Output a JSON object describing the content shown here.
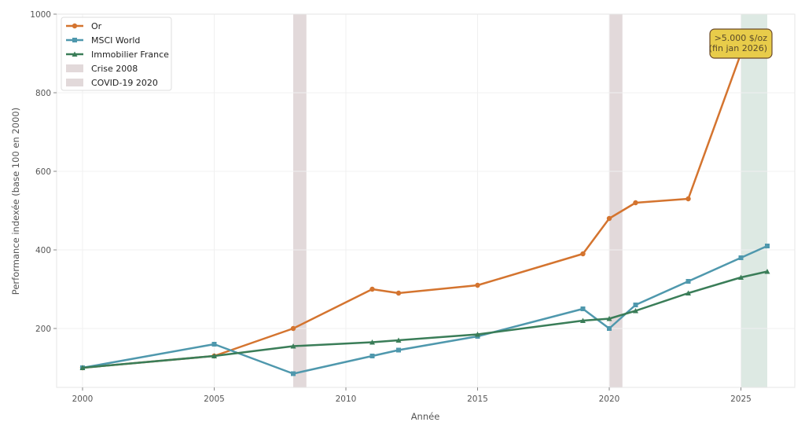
{
  "chart_data": {
    "type": "line",
    "title": "",
    "xlabel": "Année",
    "ylabel": "Performance indexée (base 100 en 2000)",
    "xlim": [
      1999.1,
      2026.9
    ],
    "ylim": [
      50,
      1000
    ],
    "xticks": [
      2000,
      2005,
      2010,
      2015,
      2020,
      2025
    ],
    "yticks": [
      200,
      400,
      600,
      800,
      1000
    ],
    "grid": true,
    "legend_position": "upper left",
    "series": [
      {
        "name": "Or",
        "color": "#d4742f",
        "marker": "circle",
        "x": [
          2000,
          2005,
          2008,
          2011,
          2012,
          2015,
          2019,
          2020,
          2021,
          2023,
          2025
        ],
        "y": [
          100,
          130,
          200,
          300,
          290,
          310,
          390,
          480,
          520,
          530,
          900
        ]
      },
      {
        "name": "MSCI World",
        "color": "#4f98ad",
        "marker": "square",
        "x": [
          2000,
          2005,
          2008,
          2011,
          2012,
          2015,
          2019,
          2020,
          2021,
          2023,
          2025,
          2026
        ],
        "y": [
          100,
          160,
          85,
          130,
          145,
          180,
          250,
          200,
          260,
          320,
          380,
          410
        ]
      },
      {
        "name": "Immobilier France",
        "color": "#3a7d58",
        "marker": "triangle",
        "x": [
          2000,
          2005,
          2008,
          2011,
          2012,
          2015,
          2019,
          2020,
          2021,
          2023,
          2025,
          2026
        ],
        "y": [
          100,
          130,
          155,
          165,
          170,
          185,
          220,
          225,
          245,
          290,
          330,
          345
        ]
      }
    ],
    "shaded_regions": [
      {
        "name": "Crise 2008",
        "x0": 2008,
        "x1": 2008.5,
        "color": "#e2d9da",
        "in_legend": true
      },
      {
        "name": "COVID-19 2020",
        "x0": 2020,
        "x1": 2020.5,
        "color": "#e2d9da",
        "in_legend": true
      },
      {
        "name": "",
        "x0": 2025,
        "x1": 2026,
        "color": "#dde9e3",
        "in_legend": false
      }
    ],
    "annotations": [
      {
        "text_lines": [
          ">5.000 $/oz",
          "(fin jan 2026)"
        ],
        "x": 2025,
        "y": 910,
        "box_color": "#e8cc4a",
        "edge_color": "#6b4a2a"
      }
    ],
    "legend": [
      "Or",
      "MSCI World",
      "Immobilier France",
      "Crise 2008",
      "COVID-19 2020"
    ]
  }
}
